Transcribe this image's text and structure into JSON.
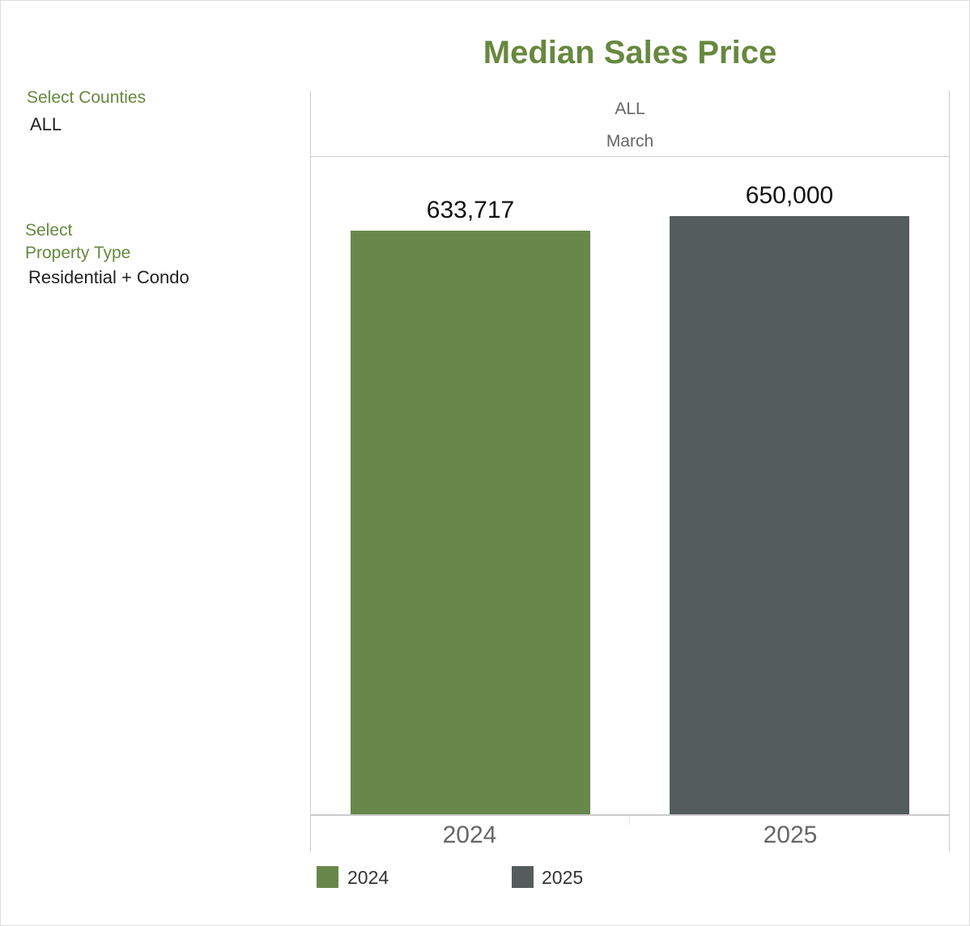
{
  "filters": {
    "counties": {
      "label": "Select Counties",
      "value": "ALL"
    },
    "property_type": {
      "label_line1": "Select",
      "label_line2": "Property Type",
      "value": "Residential + Condo"
    }
  },
  "chart_data": {
    "type": "bar",
    "title": "Median Sales Price",
    "header": [
      "ALL",
      "March"
    ],
    "categories": [
      "2024",
      "2025"
    ],
    "values": [
      633717,
      650000
    ],
    "data_labels": [
      "633,717",
      "650,000"
    ],
    "colors": [
      "#67884a",
      "#545d5c"
    ],
    "ylim": [
      0,
      714000
    ],
    "grid": false,
    "legend": {
      "position": "bottom-left",
      "entries": [
        "2024",
        "2025"
      ]
    }
  }
}
